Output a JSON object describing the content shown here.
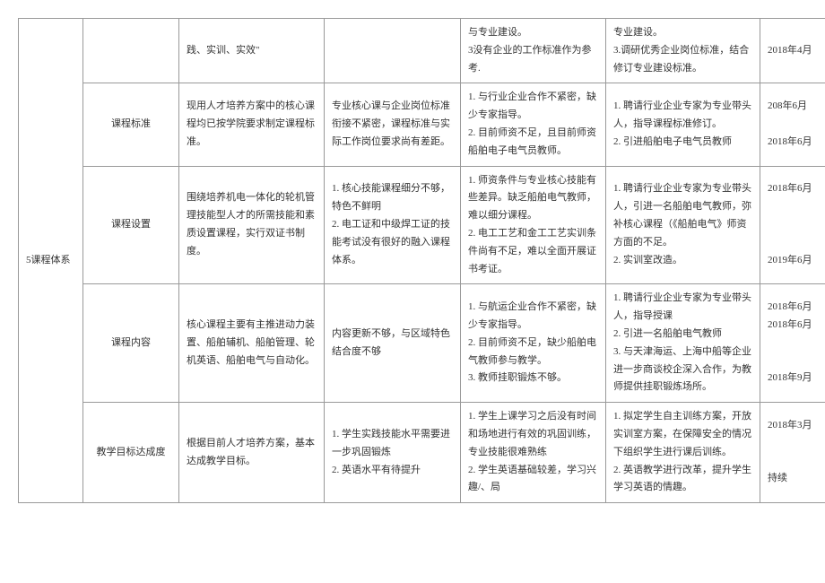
{
  "category_label": "5课程体系",
  "rows": [
    {
      "c1": "",
      "c2": "践、实训、实效\"",
      "c3": "",
      "c4": "与专业建设。\n 3没有企业的工作标准作为参考.",
      "c5": "专业建设。\n3.调研优秀企业岗位标准，结合修订专业建设标准。",
      "c6": "2018年4月"
    },
    {
      "c1": "课程标准",
      "c2": "现用人才培养方案中的核心课程均已按学院要求制定课程标准。",
      "c3": "专业核心课与企业岗位标准衔接不紧密，课程标准与实际工作岗位要求尚有差距。",
      "c4": "1. 与行业企业合作不紧密，缺少专家指导。\n2. 目前师资不足，且目前师资船舶电子电气员教师。",
      "c5": "1. 聘请行业企业专家为专业带头人，指导课程标准修订。\n2. 引进船舶电子电气员教师",
      "c6": "208年6月\n\n2018年6月"
    },
    {
      "c1": "课程设置",
      "c2": "围绕培养机电一体化的轮机管理技能型人才的所需技能和素质设置课程，实行双证书制度。",
      "c3": "1. 核心技能课程细分不够，特色不鲜明\n2. 电工证和中级焊工证的技能考试没有很好的融入课程体系。",
      "c4": "1. 师资条件与专业核心技能有些差异。缺乏船舶电气教师，难以细分课程。\n2. 电工工艺和金工工艺实训条件尚有不足，难以全面开展证书考证。",
      "c5": "1.  聘请行业企业专家为专业带头人，引进一名船舶电气教师，弥补核心课程（《船舶电气》师资方面的不足。\n  2. 实训室改造。",
      "c6": "2018年6月\n\n\n\n2019年6月"
    },
    {
      "c1": "课程内容",
      "c2": "核心课程主要有主推进动力装置、船舶辅机、船舶管理、轮机英语、船舶电气与自动化。",
      "c3": "内容更新不够，与区域特色结合度不够",
      "c4": "1. 与航运企业合作不紧密，缺少专家指导。\n2. 目前师资不足，缺少船舶电气教师参与教学。\n3. 教师挂职锻炼不够。",
      "c5": "1. 聘请行业企业专家为专业带头人，指导授课\n2. 引进一名船舶电气教师\n3. 与天津海运、上海中船等企业进一步商谈校企深入合作，为教师提供挂职锻炼场所。",
      "c6": "2018年6月\n2018年6月\n\n\n2018年9月"
    },
    {
      "c1": "教学目标达成度",
      "c2": "根据目前人才培养方案，基本达成教学目标。",
      "c3": "1. 学生实践技能水平需要进一步巩固锻炼\n2. 英语水平有待提升",
      "c4": "1. 学生上课学习之后没有时间和场地进行有效的巩固训练，专业技能很难熟练\n2. 学生英语基础较差，学习兴趣/、局",
      "c5": "1. 拟定学生自主训练方案，开放实训室方案，在保障安全的情况下组织学生进行课后训练。\n2. 英语教学进行改革，提升学生学习英语的情趣。",
      "c6": "2018年3月\n\n\n持续"
    }
  ]
}
